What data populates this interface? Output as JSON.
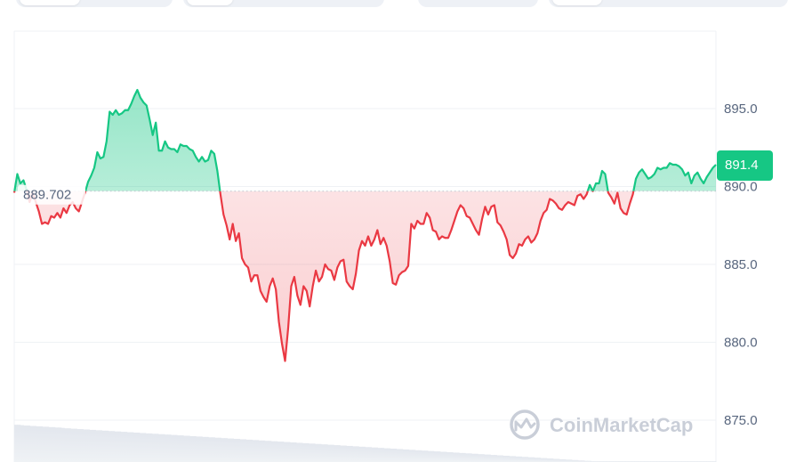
{
  "colors": {
    "up": "#16c784",
    "down": "#ea3943",
    "grid": "#eff2f5",
    "axis_text": "#58667e",
    "watermark": "#c7ccd6"
  },
  "chart_data": {
    "type": "line",
    "title": "",
    "xlabel": "",
    "ylabel": "",
    "ylim": [
      872.5,
      899.5
    ],
    "y_ticks": [
      "895.0",
      "890.0",
      "885.0",
      "880.0",
      "875.0"
    ],
    "y_tick_values": [
      895,
      890,
      885,
      880,
      875
    ],
    "reference_label": "889.702",
    "reference_value": 889.702,
    "current_price_label": "891.4",
    "current_price": 891.4,
    "grid": true,
    "series": [
      {
        "values": [
          889.6,
          890.8,
          890.2,
          890.4,
          889.8,
          889.0,
          889.6,
          889.0,
          888.4,
          887.6,
          887.7,
          887.6,
          888.1,
          888.0,
          888.3,
          888.0,
          888.6,
          888.3,
          888.8,
          889.0,
          888.6,
          888.4,
          889.0,
          889.6,
          890.3,
          890.7,
          891.2,
          892.2,
          891.8,
          891.9,
          892.9,
          894.8,
          894.6,
          894.9,
          894.6,
          894.7,
          894.9,
          894.9,
          895.3,
          895.8,
          896.2,
          895.7,
          895.4,
          895.2,
          894.3,
          893.3,
          894.1,
          892.3,
          892.3,
          892.9,
          892.5,
          892.4,
          892.4,
          892.2,
          892.7,
          892.6,
          892.6,
          892.4,
          892.3,
          891.9,
          891.6,
          891.9,
          891.6,
          891.7,
          892.3,
          892.1,
          891.0,
          889.5,
          888.2,
          887.5,
          886.6,
          887.6,
          886.5,
          887.0,
          885.4,
          885.0,
          884.8,
          883.9,
          884.3,
          884.3,
          883.3,
          882.9,
          882.6,
          883.6,
          884.1,
          883.4,
          881.3,
          879.9,
          878.8,
          880.9,
          883.6,
          884.2,
          883.0,
          882.4,
          883.6,
          883.3,
          882.3,
          883.6,
          884.6,
          883.9,
          884.2,
          885.0,
          884.7,
          884.6,
          884.0,
          884.8,
          885.2,
          885.3,
          883.9,
          883.6,
          883.4,
          884.4,
          885.9,
          886.5,
          886.2,
          886.8,
          886.2,
          886.6,
          887.2,
          886.3,
          886.7,
          886.2,
          885.2,
          883.8,
          883.7,
          884.3,
          884.5,
          884.6,
          884.9,
          887.6,
          887.3,
          887.8,
          887.6,
          887.6,
          888.3,
          888.0,
          887.2,
          887.1,
          886.6,
          886.8,
          886.7,
          886.7,
          887.2,
          887.8,
          888.4,
          888.8,
          888.6,
          888.1,
          888.0,
          887.6,
          887.2,
          886.9,
          887.9,
          888.7,
          888.2,
          888.7,
          888.8,
          887.7,
          887.5,
          887.1,
          886.6,
          885.6,
          885.4,
          885.7,
          886.3,
          886.2,
          886.6,
          886.8,
          886.4,
          886.6,
          887.0,
          887.8,
          888.3,
          888.5,
          889.2,
          889.1,
          888.9,
          888.6,
          888.5,
          888.8,
          889.0,
          888.9,
          888.8,
          889.4,
          889.5,
          889.2,
          889.5,
          890.1,
          889.7,
          890.2,
          890.2,
          891.0,
          890.8,
          889.6,
          889.3,
          888.9,
          889.6,
          888.6,
          888.3,
          888.2,
          888.9,
          889.5,
          890.5,
          890.9,
          891.1,
          890.8,
          890.5,
          890.6,
          890.8,
          891.2,
          891.1,
          891.2,
          891.2,
          891.5,
          891.4,
          891.4,
          891.3,
          891.1,
          890.7,
          890.9,
          890.2,
          890.7,
          890.9,
          890.5,
          890.2,
          890.6,
          890.9,
          891.2,
          891.4
        ]
      }
    ],
    "volume": [
      0.95,
      0.95,
      0.94,
      0.93,
      0.93,
      0.92,
      0.92,
      0.91,
      0.91,
      0.9,
      0.9,
      0.89,
      0.89,
      0.88,
      0.88,
      0.87,
      0.86,
      0.86,
      0.85,
      0.85,
      0.84,
      0.84,
      0.83,
      0.83,
      0.82,
      0.82,
      0.81,
      0.81,
      0.8,
      0.8,
      0.79,
      0.79,
      0.78,
      0.78,
      0.77,
      0.77,
      0.76,
      0.76,
      0.75,
      0.75,
      0.74,
      0.74,
      0.73,
      0.73,
      0.72,
      0.72,
      0.71,
      0.71,
      0.7,
      0.7,
      0.69,
      0.69,
      0.68,
      0.68,
      0.67,
      0.67,
      0.66,
      0.66,
      0.65,
      0.65,
      0.64,
      0.64,
      0.63,
      0.63,
      0.62,
      0.62,
      0.61,
      0.61,
      0.6,
      0.6,
      0.59,
      0.59,
      0.58,
      0.58,
      0.57,
      0.57,
      0.56,
      0.56,
      0.55,
      0.55,
      0.54,
      0.54,
      0.53,
      0.53,
      0.52,
      0.52,
      0.51,
      0.51,
      0.5,
      0.5,
      0.49,
      0.49,
      0.48,
      0.48,
      0.47,
      0.47,
      0.46,
      0.46,
      0.45,
      0.45,
      0.44,
      0.44,
      0.43,
      0.43,
      0.42,
      0.42,
      0.41,
      0.41,
      0.4,
      0.4,
      0.39,
      0.39,
      0.38,
      0.38,
      0.37,
      0.37,
      0.36,
      0.36,
      0.35,
      0.35,
      0.34,
      0.34,
      0.33,
      0.33,
      0.32,
      0.32,
      0.31,
      0.31,
      0.3,
      0.3,
      0.29,
      0.29,
      0.28,
      0.28,
      0.27,
      0.27,
      0.26,
      0.26,
      0.25,
      0.25,
      0.24,
      0.24,
      0.23,
      0.23,
      0.22,
      0.22,
      0.21,
      0.21,
      0.2,
      0.2,
      0.19,
      0.19,
      0.18,
      0.18,
      0.17,
      0.17,
      0.16,
      0.16,
      0.15,
      0.15,
      0.14,
      0.14,
      0.13,
      0.13,
      0.12,
      0.12,
      0.11,
      0.11,
      0.1,
      0.1,
      0.09,
      0.09,
      0.08,
      0.08,
      0.07,
      0.07,
      0.06,
      0.06,
      0.05,
      0.05,
      0.04,
      0.04,
      0.03,
      0.03,
      0.02,
      0.02,
      0.02,
      0.02,
      0.02,
      0.02,
      0.02,
      0.02,
      0.02,
      0.02,
      0.02,
      0.02,
      0.02,
      0.02,
      0.02,
      0.02,
      0.02,
      0.02,
      0.02,
      0.02,
      0.02,
      0.02,
      0.02,
      0.02,
      0.02,
      0.02,
      0.02,
      0.02,
      0.02,
      0.02,
      0.02,
      0.02,
      0.02,
      0.02,
      0.02,
      0.02,
      0.02,
      0.02,
      0.02,
      0.02
    ]
  },
  "watermark": {
    "text": "CoinMarketCap",
    "icon": "coinmarketcap-logo-icon"
  },
  "tabs": {
    "icon": "time-range-tab-pill"
  }
}
